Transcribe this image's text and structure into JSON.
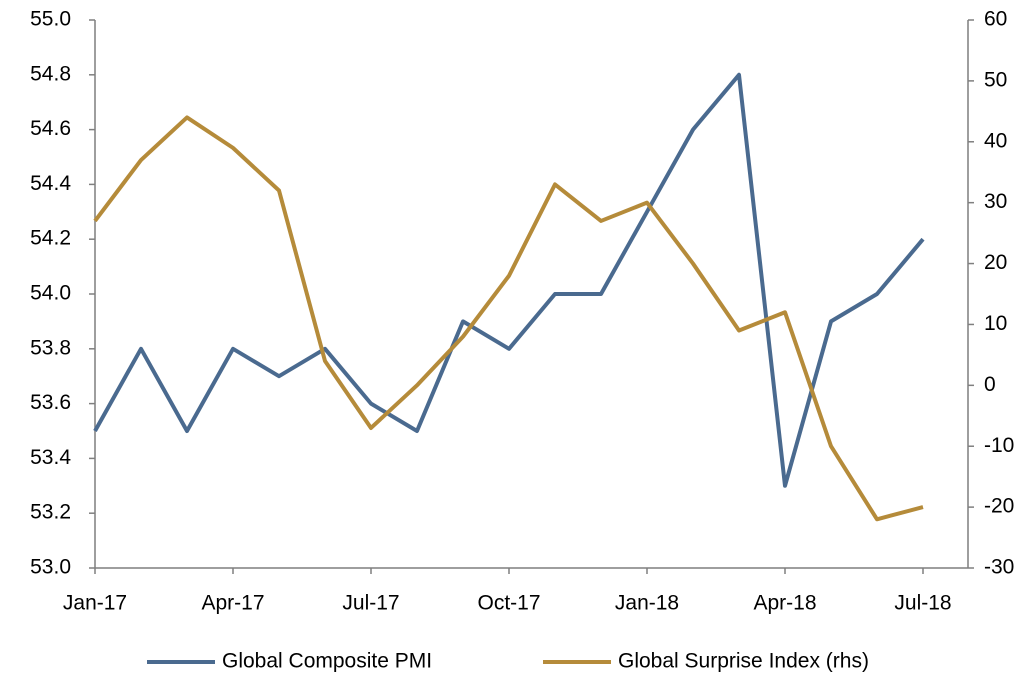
{
  "chart_data": {
    "type": "line",
    "categories": [
      "Jan-17",
      null,
      null,
      "Apr-17",
      null,
      null,
      "Jul-17",
      null,
      null,
      "Oct-17",
      null,
      null,
      "Jan-18",
      null,
      null,
      "Apr-18",
      null,
      null,
      "Jul-18"
    ],
    "series": [
      {
        "name": "Global Composite PMI",
        "color": "#4a6a8f",
        "values": [
          53.5,
          53.8,
          53.5,
          53.8,
          53.7,
          53.8,
          53.6,
          53.5,
          53.9,
          53.8,
          54.0,
          54.0,
          54.3,
          54.6,
          54.8,
          53.3,
          53.9,
          54.0,
          54.2
        ]
      },
      {
        "name": "Global Surprise Index (rhs)",
        "color": "#b58b3a",
        "axis": "y2",
        "values": [
          27,
          37,
          44,
          39,
          32,
          4,
          -7,
          0,
          8,
          18,
          33,
          27,
          30,
          20,
          9,
          12,
          -10,
          -22,
          -20
        ]
      }
    ],
    "ylim": [
      53.0,
      55.0
    ],
    "yticks": [
      {
        "value": 53.0,
        "label": "53.0"
      },
      53.2,
      53.4,
      53.6,
      53.8,
      {
        "value": 54.0,
        "label": "54.0"
      },
      54.2,
      54.4,
      54.6,
      54.8,
      {
        "value": 55.0,
        "label": "55.0"
      }
    ],
    "y2lim": [
      -30,
      60
    ],
    "y2ticks": [
      -30,
      -20,
      -10,
      0,
      10,
      20,
      30,
      40,
      50,
      60
    ],
    "grid": false,
    "legend": "bottom"
  }
}
